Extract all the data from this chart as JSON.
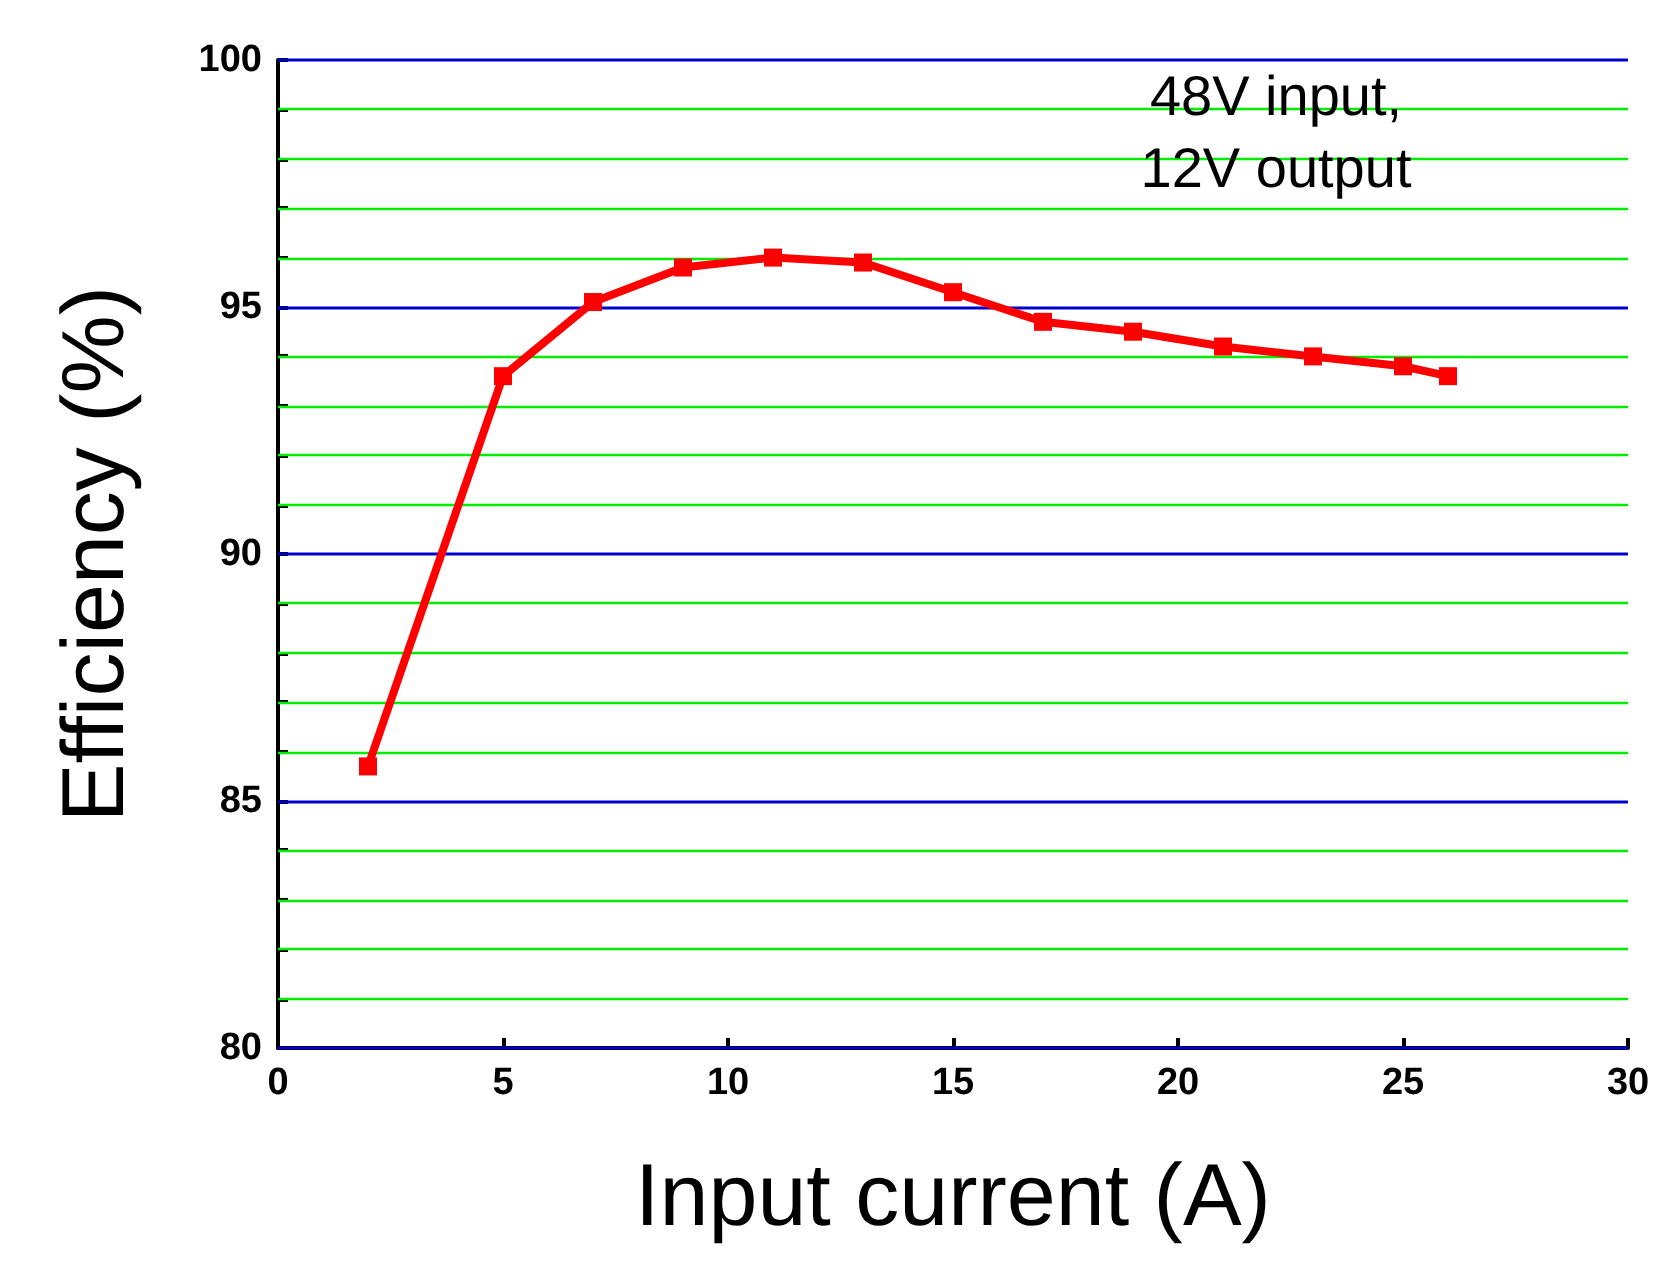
{
  "chart_data": {
    "type": "line",
    "xlabel": "Input current (A)",
    "ylabel": "Efficiency (%)",
    "x": [
      2,
      5,
      7,
      9,
      11,
      13,
      15,
      17,
      19,
      21,
      23,
      25,
      26
    ],
    "series": [
      {
        "color": "#ff0000",
        "values": [
          85.7,
          93.6,
          95.1,
          95.8,
          96.0,
          95.9,
          95.3,
          94.7,
          94.5,
          94.2,
          94.0,
          93.8,
          93.6
        ]
      }
    ],
    "xlim": [
      0,
      30
    ],
    "xticks": [
      0,
      5,
      10,
      15,
      20,
      25,
      30
    ],
    "ylim": [
      80,
      100
    ],
    "yticks": [
      80,
      {
        "value": 81,
        "label": null
      },
      {
        "value": 82,
        "label": null
      },
      {
        "value": 83,
        "label": null
      },
      {
        "value": 84,
        "label": null
      },
      85,
      {
        "value": 86,
        "label": null
      },
      {
        "value": 87,
        "label": null
      },
      {
        "value": 88,
        "label": null
      },
      {
        "value": 89,
        "label": null
      },
      90,
      {
        "value": 91,
        "label": null
      },
      {
        "value": 92,
        "label": null
      },
      {
        "value": 93,
        "label": null
      },
      {
        "value": 94,
        "label": null
      },
      95,
      {
        "value": 96,
        "label": null
      },
      {
        "value": 97,
        "label": null
      },
      {
        "value": 98,
        "label": null
      },
      {
        "value": 99,
        "label": null
      },
      100
    ],
    "grid": "y",
    "marker": "square",
    "line_style": "solid",
    "annotations": [
      "48V input,\n12V output"
    ]
  }
}
